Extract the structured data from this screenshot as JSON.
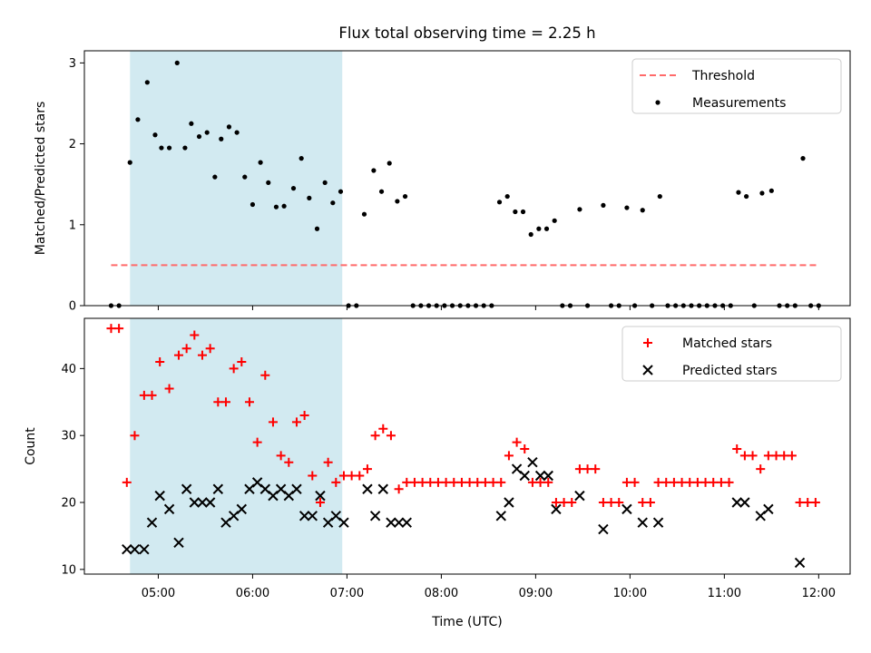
{
  "chart_data": {
    "title": "Flux total observing time = 2.25 h",
    "xlabel": "Time (UTC)",
    "x_ticks": [
      "05:00",
      "06:00",
      "07:00",
      "08:00",
      "09:00",
      "10:00",
      "11:00",
      "12:00"
    ],
    "x_range": [
      "04:13",
      "12:20"
    ],
    "highlight_span": [
      "04:42",
      "06:57"
    ],
    "colors": {
      "highlight": "#add8e6",
      "threshold": "#ff6a6a",
      "measurements": "#000000",
      "matched": "#ff0000",
      "predicted": "#000000"
    },
    "panels": [
      {
        "type": "scatter",
        "ylabel": "Matched/Predicted stars",
        "ylim": [
          0,
          3.15
        ],
        "yticks": [
          "0",
          "1",
          "2",
          "3"
        ],
        "legend_position": "upper right",
        "threshold": {
          "name": "Threshold",
          "value": 0.5,
          "x_range": [
            "04:30",
            "12:00"
          ],
          "style": "dashed"
        },
        "series": [
          {
            "name": "Measurements",
            "marker": "dot",
            "points": [
              [
                "04:30",
                0
              ],
              [
                "04:35",
                0
              ],
              [
                "04:42",
                1.77
              ],
              [
                "04:47",
                2.3
              ],
              [
                "04:53",
                2.76
              ],
              [
                "04:58",
                2.11
              ],
              [
                "05:02",
                1.95
              ],
              [
                "05:07",
                1.95
              ],
              [
                "05:12",
                3.0
              ],
              [
                "05:17",
                1.95
              ],
              [
                "05:21",
                2.25
              ],
              [
                "05:26",
                2.09
              ],
              [
                "05:31",
                2.14
              ],
              [
                "05:36",
                1.59
              ],
              [
                "05:40",
                2.06
              ],
              [
                "05:45",
                2.21
              ],
              [
                "05:50",
                2.14
              ],
              [
                "05:55",
                1.59
              ],
              [
                "06:00",
                1.25
              ],
              [
                "06:05",
                1.77
              ],
              [
                "06:10",
                1.52
              ],
              [
                "06:15",
                1.22
              ],
              [
                "06:20",
                1.23
              ],
              [
                "06:26",
                1.45
              ],
              [
                "06:31",
                1.82
              ],
              [
                "06:36",
                1.33
              ],
              [
                "06:41",
                0.95
              ],
              [
                "06:46",
                1.52
              ],
              [
                "06:51",
                1.27
              ],
              [
                "06:56",
                1.41
              ],
              [
                "07:01",
                0
              ],
              [
                "07:06",
                0
              ],
              [
                "07:11",
                1.13
              ],
              [
                "07:17",
                1.67
              ],
              [
                "07:22",
                1.41
              ],
              [
                "07:27",
                1.76
              ],
              [
                "07:32",
                1.29
              ],
              [
                "07:37",
                1.35
              ],
              [
                "07:42",
                0
              ],
              [
                "07:47",
                0
              ],
              [
                "07:52",
                0
              ],
              [
                "07:57",
                0
              ],
              [
                "08:02",
                0
              ],
              [
                "08:07",
                0
              ],
              [
                "08:12",
                0
              ],
              [
                "08:17",
                0
              ],
              [
                "08:22",
                0
              ],
              [
                "08:27",
                0
              ],
              [
                "08:32",
                0
              ],
              [
                "08:37",
                1.28
              ],
              [
                "08:42",
                1.35
              ],
              [
                "08:47",
                1.16
              ],
              [
                "08:52",
                1.16
              ],
              [
                "08:57",
                0.88
              ],
              [
                "09:02",
                0.95
              ],
              [
                "09:07",
                0.95
              ],
              [
                "09:12",
                1.05
              ],
              [
                "09:17",
                0
              ],
              [
                "09:22",
                0
              ],
              [
                "09:28",
                1.19
              ],
              [
                "09:33",
                0
              ],
              [
                "09:43",
                1.24
              ],
              [
                "09:48",
                0
              ],
              [
                "09:53",
                0
              ],
              [
                "09:58",
                1.21
              ],
              [
                "10:03",
                0
              ],
              [
                "10:08",
                1.18
              ],
              [
                "10:14",
                0
              ],
              [
                "10:19",
                1.35
              ],
              [
                "10:24",
                0
              ],
              [
                "10:29",
                0
              ],
              [
                "10:34",
                0
              ],
              [
                "10:39",
                0
              ],
              [
                "10:44",
                0
              ],
              [
                "10:49",
                0
              ],
              [
                "10:54",
                0
              ],
              [
                "10:59",
                0
              ],
              [
                "11:04",
                0
              ],
              [
                "11:09",
                1.4
              ],
              [
                "11:14",
                1.35
              ],
              [
                "11:19",
                0
              ],
              [
                "11:24",
                1.39
              ],
              [
                "11:30",
                1.42
              ],
              [
                "11:35",
                0
              ],
              [
                "11:40",
                0
              ],
              [
                "11:45",
                0
              ],
              [
                "11:50",
                1.82
              ],
              [
                "11:55",
                0
              ],
              [
                "12:00",
                0
              ]
            ]
          }
        ]
      },
      {
        "type": "scatter",
        "ylabel": "Count",
        "ylim": [
          9.3,
          47.5
        ],
        "yticks": [
          "10",
          "20",
          "30",
          "40"
        ],
        "legend_position": "upper right",
        "series": [
          {
            "name": "Matched stars",
            "marker": "plus",
            "points": [
              [
                "04:30",
                46
              ],
              [
                "04:35",
                46
              ],
              [
                "04:40",
                23
              ],
              [
                "04:45",
                30
              ],
              [
                "04:51",
                36
              ],
              [
                "04:56",
                36
              ],
              [
                "05:01",
                41
              ],
              [
                "05:07",
                37
              ],
              [
                "05:13",
                42
              ],
              [
                "05:18",
                43
              ],
              [
                "05:23",
                45
              ],
              [
                "05:28",
                42
              ],
              [
                "05:33",
                43
              ],
              [
                "05:38",
                35
              ],
              [
                "05:43",
                35
              ],
              [
                "05:48",
                40
              ],
              [
                "05:53",
                41
              ],
              [
                "05:58",
                35
              ],
              [
                "06:03",
                29
              ],
              [
                "06:08",
                39
              ],
              [
                "06:13",
                32
              ],
              [
                "06:18",
                27
              ],
              [
                "06:23",
                26
              ],
              [
                "06:28",
                32
              ],
              [
                "06:33",
                33
              ],
              [
                "06:38",
                24
              ],
              [
                "06:43",
                20
              ],
              [
                "06:48",
                26
              ],
              [
                "06:53",
                23
              ],
              [
                "06:58",
                24
              ],
              [
                "07:03",
                24
              ],
              [
                "07:08",
                24
              ],
              [
                "07:13",
                25
              ],
              [
                "07:18",
                30
              ],
              [
                "07:23",
                31
              ],
              [
                "07:28",
                30
              ],
              [
                "07:33",
                22
              ],
              [
                "07:38",
                23
              ],
              [
                "07:43",
                23
              ],
              [
                "07:48",
                23
              ],
              [
                "07:53",
                23
              ],
              [
                "07:58",
                23
              ],
              [
                "08:03",
                23
              ],
              [
                "08:08",
                23
              ],
              [
                "08:13",
                23
              ],
              [
                "08:18",
                23
              ],
              [
                "08:23",
                23
              ],
              [
                "08:28",
                23
              ],
              [
                "08:33",
                23
              ],
              [
                "08:38",
                23
              ],
              [
                "08:43",
                27
              ],
              [
                "08:48",
                29
              ],
              [
                "08:53",
                28
              ],
              [
                "08:58",
                23
              ],
              [
                "09:03",
                23
              ],
              [
                "09:08",
                23
              ],
              [
                "09:13",
                20
              ],
              [
                "09:18",
                20
              ],
              [
                "09:23",
                20
              ],
              [
                "09:28",
                25
              ],
              [
                "09:33",
                25
              ],
              [
                "09:38",
                25
              ],
              [
                "09:43",
                20
              ],
              [
                "09:48",
                20
              ],
              [
                "09:53",
                20
              ],
              [
                "09:58",
                23
              ],
              [
                "10:03",
                23
              ],
              [
                "10:08",
                20
              ],
              [
                "10:13",
                20
              ],
              [
                "10:18",
                23
              ],
              [
                "10:23",
                23
              ],
              [
                "10:28",
                23
              ],
              [
                "10:33",
                23
              ],
              [
                "10:38",
                23
              ],
              [
                "10:43",
                23
              ],
              [
                "10:48",
                23
              ],
              [
                "10:53",
                23
              ],
              [
                "10:58",
                23
              ],
              [
                "11:03",
                23
              ],
              [
                "11:08",
                28
              ],
              [
                "11:13",
                27
              ],
              [
                "11:18",
                27
              ],
              [
                "11:23",
                25
              ],
              [
                "11:28",
                27
              ],
              [
                "11:33",
                27
              ],
              [
                "11:38",
                27
              ],
              [
                "11:43",
                27
              ],
              [
                "11:48",
                20
              ],
              [
                "11:53",
                20
              ],
              [
                "11:58",
                20
              ]
            ]
          },
          {
            "name": "Predicted stars",
            "marker": "x",
            "points": [
              [
                "04:40",
                13
              ],
              [
                "04:45",
                13
              ],
              [
                "04:51",
                13
              ],
              [
                "04:56",
                17
              ],
              [
                "05:01",
                21
              ],
              [
                "05:07",
                19
              ],
              [
                "05:13",
                14
              ],
              [
                "05:18",
                22
              ],
              [
                "05:23",
                20
              ],
              [
                "05:28",
                20
              ],
              [
                "05:33",
                20
              ],
              [
                "05:38",
                22
              ],
              [
                "05:43",
                17
              ],
              [
                "05:48",
                18
              ],
              [
                "05:53",
                19
              ],
              [
                "05:58",
                22
              ],
              [
                "06:03",
                23
              ],
              [
                "06:08",
                22
              ],
              [
                "06:13",
                21
              ],
              [
                "06:18",
                22
              ],
              [
                "06:23",
                21
              ],
              [
                "06:28",
                22
              ],
              [
                "06:33",
                18
              ],
              [
                "06:38",
                18
              ],
              [
                "06:43",
                21
              ],
              [
                "06:48",
                17
              ],
              [
                "06:53",
                18
              ],
              [
                "06:58",
                17
              ],
              [
                "07:13",
                22
              ],
              [
                "07:18",
                18
              ],
              [
                "07:23",
                22
              ],
              [
                "07:28",
                17
              ],
              [
                "07:33",
                17
              ],
              [
                "07:38",
                17
              ],
              [
                "08:38",
                18
              ],
              [
                "08:43",
                20
              ],
              [
                "08:48",
                25
              ],
              [
                "08:53",
                24
              ],
              [
                "08:58",
                26
              ],
              [
                "09:03",
                24
              ],
              [
                "09:08",
                24
              ],
              [
                "09:13",
                19
              ],
              [
                "09:28",
                21
              ],
              [
                "09:43",
                16
              ],
              [
                "09:58",
                19
              ],
              [
                "10:08",
                17
              ],
              [
                "10:18",
                17
              ],
              [
                "11:08",
                20
              ],
              [
                "11:13",
                20
              ],
              [
                "11:23",
                18
              ],
              [
                "11:28",
                19
              ],
              [
                "11:48",
                11
              ]
            ]
          }
        ]
      }
    ]
  }
}
